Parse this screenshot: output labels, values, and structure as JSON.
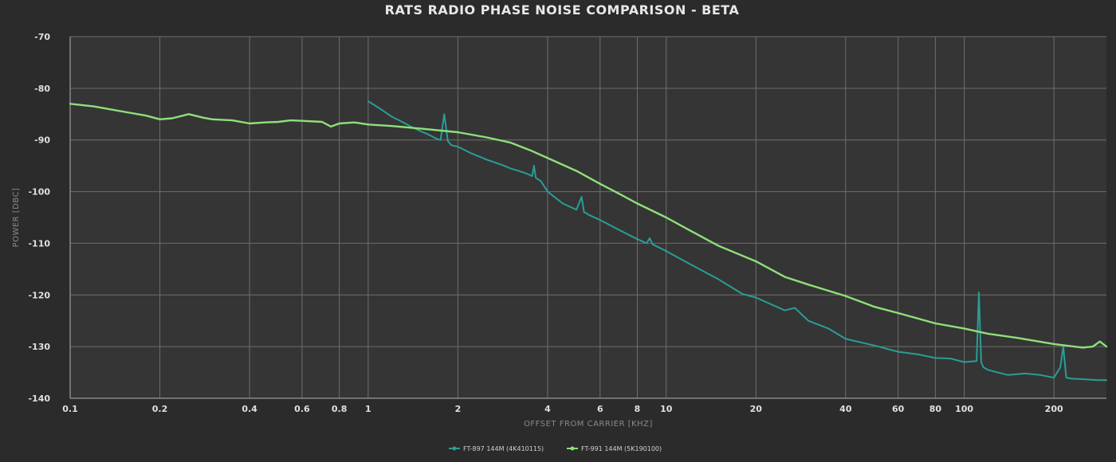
{
  "chart_data": {
    "type": "line",
    "title": "RATS RADIO PHASE NOISE COMPARISON - BETA",
    "xlabel": "OFFSET FROM CARRIER [KHZ]",
    "ylabel": "POWER [DBC]",
    "x_scale": "log",
    "xlim": [
      0.1,
      300
    ],
    "ylim": [
      -140,
      -70
    ],
    "grid": true,
    "legend_placement": "bottom-center",
    "x_ticks": [
      0.1,
      0.2,
      0.4,
      0.6,
      0.8,
      1,
      2,
      4,
      6,
      8,
      10,
      20,
      40,
      60,
      80,
      100,
      200
    ],
    "x_tick_labels": [
      "0.1",
      "0.2",
      "0.4",
      "0.6",
      "0.8",
      "1",
      "2",
      "4",
      "6",
      "8",
      "10",
      "20",
      "40",
      "60",
      "80",
      "100",
      "200"
    ],
    "y_ticks": [
      -140,
      -130,
      -120,
      -110,
      -100,
      -90,
      -80,
      -70
    ],
    "y_tick_labels": [
      "-140",
      "-130",
      "-120",
      "-110",
      "-100",
      "-90",
      "-80",
      "-70"
    ],
    "series": [
      {
        "name": "FT-897 144M (4K410115)",
        "color": "#2a9d96",
        "x": [
          1,
          1.1,
          1.2,
          1.3,
          1.4,
          1.5,
          1.6,
          1.7,
          1.75,
          1.8,
          1.85,
          1.9,
          2,
          2.2,
          2.5,
          2.8,
          3,
          3.2,
          3.4,
          3.55,
          3.6,
          3.65,
          3.8,
          4,
          4.5,
          5,
          5.2,
          5.3,
          5.4,
          5.5,
          6,
          7,
          8,
          8.6,
          8.8,
          9,
          10,
          12,
          15,
          18,
          20,
          25,
          27,
          30,
          35,
          40,
          50,
          60,
          70,
          80,
          90,
          100,
          110,
          112,
          114,
          116,
          120,
          140,
          160,
          180,
          200,
          210,
          215,
          220,
          230,
          250,
          280,
          300
        ],
        "y": [
          -82.5,
          -84,
          -85.5,
          -86.5,
          -87.5,
          -88.3,
          -89,
          -89.8,
          -90,
          -85,
          -90.2,
          -91,
          -91.3,
          -92.5,
          -93.8,
          -94.8,
          -95.5,
          -96,
          -96.5,
          -97,
          -95,
          -97.3,
          -98,
          -100,
          -102.3,
          -103.5,
          -101,
          -104,
          -104.2,
          -104.5,
          -105.5,
          -107.5,
          -109.2,
          -110,
          -109,
          -110.2,
          -111.5,
          -114,
          -117,
          -119.8,
          -120.5,
          -123,
          -122.5,
          -125,
          -126.5,
          -128.5,
          -129.8,
          -131,
          -131.5,
          -132.2,
          -132.3,
          -133,
          -132.8,
          -119.5,
          -133,
          -134,
          -134.5,
          -135.5,
          -135.2,
          -135.5,
          -136,
          -134,
          -130,
          -136,
          -136.2,
          -136.3,
          -136.5,
          -136.5
        ]
      },
      {
        "name": "FT-991 144M (5K190100)",
        "color": "#8ee07a",
        "x": [
          0.1,
          0.12,
          0.15,
          0.18,
          0.2,
          0.22,
          0.25,
          0.28,
          0.3,
          0.35,
          0.4,
          0.45,
          0.5,
          0.55,
          0.6,
          0.7,
          0.75,
          0.8,
          0.85,
          0.9,
          1,
          1.2,
          1.5,
          2,
          2.5,
          3,
          3.5,
          4,
          5,
          6,
          7,
          8,
          10,
          12,
          15,
          20,
          25,
          30,
          40,
          50,
          60,
          80,
          100,
          120,
          150,
          200,
          250,
          270,
          285,
          300
        ],
        "y": [
          -83,
          -83.5,
          -84.5,
          -85.3,
          -86,
          -85.8,
          -85,
          -85.7,
          -86,
          -86.2,
          -86.8,
          -86.6,
          -86.5,
          -86.2,
          -86.3,
          -86.5,
          -87.4,
          -86.8,
          -86.7,
          -86.6,
          -87,
          -87.3,
          -87.8,
          -88.5,
          -89.5,
          -90.5,
          -92,
          -93.5,
          -96,
          -98.5,
          -100.5,
          -102.3,
          -105,
          -107.5,
          -110.5,
          -113.5,
          -116.5,
          -118,
          -120.2,
          -122.3,
          -123.5,
          -125.5,
          -126.5,
          -127.5,
          -128.3,
          -129.5,
          -130.2,
          -130,
          -129,
          -130
        ]
      }
    ]
  }
}
